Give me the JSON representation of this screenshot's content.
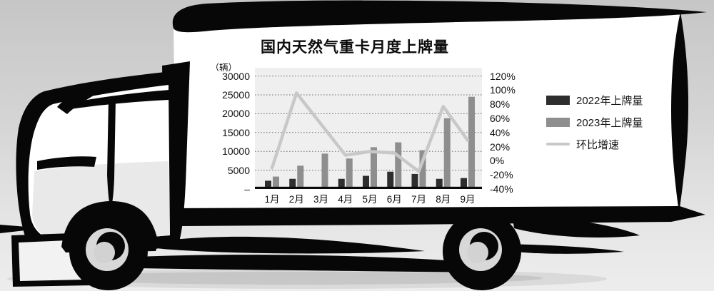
{
  "chart": {
    "title": "国内天然气重卡月度上牌量",
    "unit": "（辆）"
  },
  "chart_data": {
    "type": "bar+line combo",
    "title": "国内天然气重卡月度上牌量",
    "categories": [
      "1月",
      "2月",
      "3月",
      "4月",
      "5月",
      "6月",
      "7月",
      "8月",
      "9月"
    ],
    "series": [
      {
        "name": "2022年上牌量",
        "type": "bar",
        "axis": "left",
        "color": "#2e2e2e",
        "values": [
          2200,
          2700,
          null,
          2700,
          3500,
          4600,
          4000,
          2700,
          2900
        ]
      },
      {
        "name": "2023年上牌量",
        "type": "bar",
        "axis": "left",
        "color": "#8e8e8e",
        "values": [
          3300,
          6200,
          9400,
          8100,
          11100,
          12400,
          10300,
          18800,
          24500
        ]
      },
      {
        "name": "环比增速",
        "type": "line",
        "axis": "right",
        "color": "#c8c8c8",
        "unit": "%",
        "values": [
          -10,
          96,
          52,
          8,
          13,
          11,
          -15,
          77,
          29
        ]
      }
    ],
    "left_axis": {
      "unit": "（辆）",
      "min": 0,
      "max": 30000,
      "step": 5000,
      "tick_labels": [
        "30000",
        "25000",
        "20000",
        "15000",
        "10000",
        "5000",
        "–"
      ]
    },
    "right_axis": {
      "unit": "%",
      "min": -40,
      "max": 120,
      "step": 20,
      "tick_labels": [
        "120%",
        "100%",
        "80%",
        "60%",
        "40%",
        "20%",
        "0%",
        "-20%",
        "-40%"
      ]
    },
    "grid": "horizontal dotted, left-axis intervals",
    "legend_position": "right",
    "plot_background": "#efefef"
  },
  "colors": {
    "bar_2022": "#2e2e2e",
    "bar_2023": "#8e8e8e",
    "growth_line": "#c8c8c8",
    "axis_line": "#0a0a0a",
    "gridline": "#707070",
    "truck_ink": "#070707",
    "billboard": "#ffffff"
  }
}
